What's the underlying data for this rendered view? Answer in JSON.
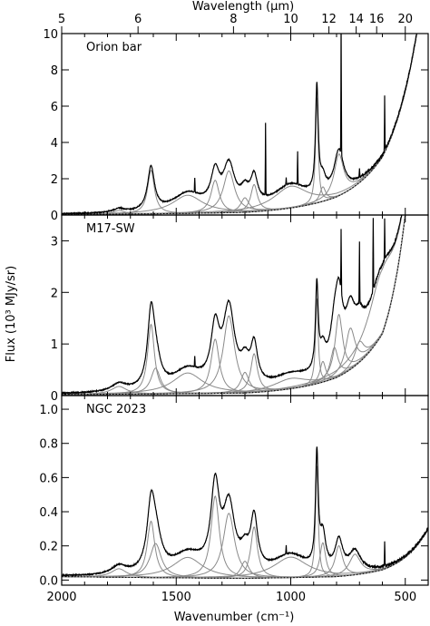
{
  "chart_data": {
    "type": "line",
    "xlabel": "Wavenumber (cm⁻¹)",
    "top_xlabel": "Wavelength (μm)",
    "ylabel": "Flux (10³ MJy/sr)",
    "xlim": [
      2000,
      400
    ],
    "xticks": [
      2000,
      1500,
      1000,
      500
    ],
    "top_xticks": [
      5,
      6,
      8,
      10,
      12,
      14,
      16,
      20
    ],
    "panels": [
      {
        "label": "Orion bar",
        "ylim": [
          0,
          10
        ],
        "yticks": [
          0,
          2,
          4,
          6,
          8,
          10
        ],
        "ytick_labels": [
          "0",
          "2",
          "4",
          "6",
          "8",
          "10"
        ],
        "continuum": {
          "at_2000": 0.03,
          "at_1200": 0.15,
          "at_800": 1.0,
          "at_600": 3.2,
          "at_450": 10
        },
        "features": [
          {
            "center": 1610,
            "height": 2.4,
            "width": 18
          },
          {
            "center": 1450,
            "height": 1.0,
            "width": 80
          },
          {
            "center": 1330,
            "height": 1.8,
            "width": 22
          },
          {
            "center": 1270,
            "height": 2.3,
            "width": 30
          },
          {
            "center": 1200,
            "height": 0.8,
            "width": 22
          },
          {
            "center": 1160,
            "height": 1.5,
            "width": 18
          },
          {
            "center": 1000,
            "height": 1.2,
            "width": 90
          },
          {
            "center": 886,
            "height": 5.8,
            "width": 7
          },
          {
            "center": 860,
            "height": 0.8,
            "width": 15
          },
          {
            "center": 790,
            "height": 2.3,
            "width": 25
          },
          {
            "center": 1750,
            "height": 0.2,
            "width": 30
          }
        ],
        "lines": [
          {
            "x": 1419,
            "height": 0.8
          },
          {
            "x": 1110,
            "height": 4.0
          },
          {
            "x": 1020,
            "height": 0.4
          },
          {
            "x": 970,
            "height": 1.8
          },
          {
            "x": 780,
            "height": 7.5
          },
          {
            "x": 700,
            "height": 0.5
          },
          {
            "x": 590,
            "height": 3.0
          }
        ]
      },
      {
        "label": "M17-SW",
        "ylim": [
          0,
          3.5
        ],
        "yticks": [
          0,
          1,
          2,
          3
        ],
        "ytick_labels": [
          "0",
          "1",
          "2",
          "3"
        ],
        "continuum": {
          "at_2000": 0.02,
          "at_1200": 0.05,
          "at_800": 0.35,
          "at_600": 1.2,
          "at_450": 6
        },
        "features": [
          {
            "center": 1610,
            "height": 1.35,
            "width": 18
          },
          {
            "center": 1590,
            "height": 0.5,
            "width": 25
          },
          {
            "center": 1450,
            "height": 0.4,
            "width": 80
          },
          {
            "center": 1330,
            "height": 1.05,
            "width": 22
          },
          {
            "center": 1270,
            "height": 1.5,
            "width": 30
          },
          {
            "center": 1200,
            "height": 0.4,
            "width": 22
          },
          {
            "center": 1160,
            "height": 0.75,
            "width": 18
          },
          {
            "center": 1000,
            "height": 0.2,
            "width": 90
          },
          {
            "center": 886,
            "height": 1.65,
            "width": 7
          },
          {
            "center": 860,
            "height": 0.4,
            "width": 15
          },
          {
            "center": 810,
            "height": 0.6,
            "width": 20
          },
          {
            "center": 790,
            "height": 1.2,
            "width": 20
          },
          {
            "center": 740,
            "height": 0.8,
            "width": 25
          },
          {
            "center": 700,
            "height": 0.4,
            "width": 25
          },
          {
            "center": 600,
            "height": 1.25,
            "width": 70
          },
          {
            "center": 1750,
            "height": 0.15,
            "width": 40
          }
        ],
        "lines": [
          {
            "x": 1419,
            "height": 0.2
          },
          {
            "x": 780,
            "height": 1.2
          },
          {
            "x": 700,
            "height": 1.2
          },
          {
            "x": 640,
            "height": 1.4
          },
          {
            "x": 590,
            "height": 0.8
          }
        ]
      },
      {
        "label": "NGC 2023",
        "ylim": [
          -0.03,
          1.08
        ],
        "yticks": [
          0.0,
          0.2,
          0.4,
          0.6,
          0.8,
          1.0
        ],
        "ytick_labels": [
          "0.0",
          "0.2",
          "0.4",
          "0.6",
          "0.8",
          "1.0"
        ],
        "continuum": {
          "at_2000": 0.02,
          "at_1200": 0.01,
          "at_800": 0.02,
          "at_600": 0.06,
          "at_450": 0.2
        },
        "features": [
          {
            "center": 1610,
            "height": 0.33,
            "width": 20
          },
          {
            "center": 1590,
            "height": 0.2,
            "width": 30
          },
          {
            "center": 1450,
            "height": 0.12,
            "width": 80
          },
          {
            "center": 1330,
            "height": 0.48,
            "width": 22
          },
          {
            "center": 1270,
            "height": 0.38,
            "width": 30
          },
          {
            "center": 1200,
            "height": 0.1,
            "width": 22
          },
          {
            "center": 1160,
            "height": 0.3,
            "width": 18
          },
          {
            "center": 1000,
            "height": 0.12,
            "width": 90
          },
          {
            "center": 886,
            "height": 0.65,
            "width": 7
          },
          {
            "center": 860,
            "height": 0.2,
            "width": 15
          },
          {
            "center": 790,
            "height": 0.18,
            "width": 20
          },
          {
            "center": 720,
            "height": 0.12,
            "width": 30
          },
          {
            "center": 1750,
            "height": 0.05,
            "width": 40
          }
        ],
        "lines": [
          {
            "x": 1020,
            "height": 0.05
          },
          {
            "x": 590,
            "height": 0.15
          }
        ]
      }
    ]
  }
}
